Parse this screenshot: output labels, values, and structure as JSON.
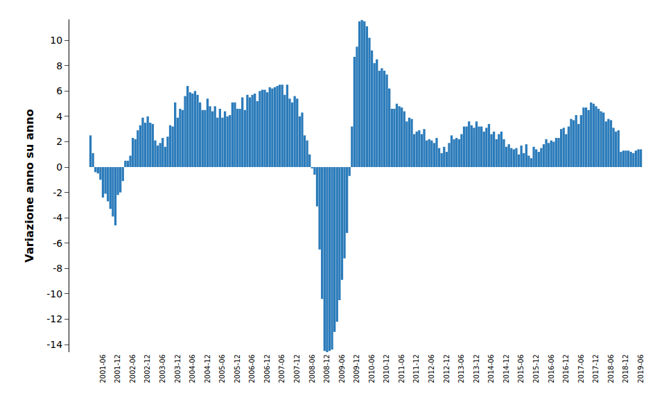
{
  "chart_data": {
    "type": "bar",
    "y_label": "Variazione anno su anno",
    "color": "#2b7bba",
    "grid": false,
    "ylim": [
      -14.6,
      11.65
    ],
    "yticks": [
      -14,
      -12,
      -10,
      -8,
      -6,
      -4,
      -2,
      0,
      2,
      4,
      6,
      8,
      10
    ],
    "categories": [
      null,
      null,
      null,
      null,
      null,
      "2001-06",
      null,
      null,
      null,
      null,
      null,
      "2001-12",
      null,
      null,
      null,
      null,
      null,
      "2002-06",
      null,
      null,
      null,
      null,
      null,
      "2002-12",
      null,
      null,
      null,
      null,
      null,
      "2003-06",
      null,
      null,
      null,
      null,
      null,
      "2003-12",
      null,
      null,
      null,
      null,
      null,
      "2004-06",
      null,
      null,
      null,
      null,
      null,
      "2004-12",
      null,
      null,
      null,
      null,
      null,
      "2005-06",
      null,
      null,
      null,
      null,
      null,
      "2005-12",
      null,
      null,
      null,
      null,
      null,
      "2006-06",
      null,
      null,
      null,
      null,
      null,
      "2006-12",
      null,
      null,
      null,
      null,
      null,
      "2007-06",
      null,
      null,
      null,
      null,
      null,
      "2007-12",
      null,
      null,
      null,
      null,
      null,
      "2008-06",
      null,
      null,
      null,
      null,
      null,
      "2008-12",
      null,
      null,
      null,
      null,
      null,
      "2009-06",
      null,
      null,
      null,
      null,
      null,
      "2009-12",
      null,
      null,
      null,
      null,
      null,
      "2010-06",
      null,
      null,
      null,
      null,
      null,
      "2010-12",
      null,
      null,
      null,
      null,
      null,
      "2011-06",
      null,
      null,
      null,
      null,
      null,
      "2011-12",
      null,
      null,
      null,
      null,
      null,
      "2012-06",
      null,
      null,
      null,
      null,
      null,
      "2012-12",
      null,
      null,
      null,
      null,
      null,
      "2013-06",
      null,
      null,
      null,
      null,
      null,
      "2013-12",
      null,
      null,
      null,
      null,
      null,
      "2014-06",
      null,
      null,
      null,
      null,
      null,
      "2014-12",
      null,
      null,
      null,
      null,
      null,
      "2015-06",
      null,
      null,
      null,
      null,
      null,
      "2015-12",
      null,
      null,
      null,
      null,
      null,
      "2016-06",
      null,
      null,
      null,
      null,
      null,
      "2016-12",
      null,
      null,
      null,
      null,
      null,
      "2017-06",
      null,
      null,
      null,
      null,
      null,
      "2017-12",
      null,
      null,
      null,
      null,
      null,
      "2018-06",
      null,
      null,
      null,
      null,
      null,
      "2018-12",
      null,
      null,
      null,
      null,
      null,
      "2019-06"
    ],
    "values": [
      2.5,
      1.1,
      -0.4,
      -0.5,
      -1.0,
      -2.4,
      -2.1,
      -2.7,
      -3.3,
      -3.9,
      -4.6,
      -2.2,
      -2.0,
      -1.1,
      0.5,
      0.5,
      0.9,
      2.3,
      2.2,
      2.9,
      3.3,
      3.9,
      3.5,
      4.0,
      3.5,
      3.4,
      2.1,
      1.7,
      1.9,
      2.3,
      1.6,
      2.4,
      3.3,
      3.2,
      5.1,
      3.9,
      4.6,
      4.5,
      5.6,
      6.4,
      5.9,
      5.8,
      6.0,
      5.7,
      5.1,
      4.5,
      4.5,
      5.4,
      4.8,
      4.4,
      4.8,
      3.9,
      4.6,
      3.9,
      4.4,
      4.0,
      4.1,
      5.1,
      5.1,
      4.6,
      4.6,
      5.5,
      4.5,
      5.7,
      5.5,
      5.7,
      5.8,
      5.2,
      6.0,
      6.1,
      6.1,
      5.9,
      6.3,
      6.2,
      6.3,
      6.4,
      6.5,
      6.5,
      5.7,
      6.5,
      5.4,
      5.1,
      5.6,
      5.4,
      4.0,
      4.3,
      2.5,
      2.1,
      1.0,
      -0.1,
      -0.6,
      -3.1,
      -6.5,
      -10.4,
      -14.5,
      -14.6,
      -14.5,
      -14.4,
      -13.0,
      -12.2,
      -10.5,
      -8.9,
      -7.2,
      -5.2,
      -0.7,
      3.2,
      8.7,
      9.5,
      11.5,
      11.6,
      11.5,
      11.1,
      10.2,
      9.2,
      8.2,
      8.5,
      7.6,
      7.8,
      7.6,
      7.3,
      6.2,
      4.6,
      4.6,
      5.0,
      4.8,
      4.7,
      4.4,
      3.6,
      3.9,
      3.8,
      2.6,
      2.8,
      2.9,
      2.6,
      3.0,
      2.1,
      2.2,
      2.1,
      1.9,
      2.3,
      1.5,
      1.1,
      1.6,
      1.2,
      1.9,
      2.5,
      2.2,
      2.3,
      2.2,
      2.6,
      3.2,
      3.2,
      3.6,
      3.3,
      3.1,
      3.6,
      3.2,
      3.2,
      2.8,
      3.1,
      3.4,
      2.6,
      2.8,
      2.2,
      2.6,
      2.8,
      2.2,
      1.6,
      1.8,
      1.5,
      1.4,
      1.5,
      1.0,
      1.7,
      1.1,
      1.8,
      0.9,
      0.7,
      1.6,
      1.4,
      1.2,
      1.5,
      1.8,
      2.2,
      1.9,
      2.1,
      2.0,
      2.3,
      2.3,
      3.0,
      3.1,
      2.6,
      3.2,
      3.8,
      3.7,
      4.1,
      3.4,
      4.1,
      4.7,
      4.7,
      4.5,
      5.1,
      5.0,
      4.8,
      4.6,
      4.4,
      4.3,
      3.6,
      3.8,
      3.7,
      3.1,
      2.8,
      2.9,
      1.2,
      1.3,
      1.3,
      1.3,
      1.2,
      1.1,
      1.3,
      1.4,
      1.4
    ]
  }
}
